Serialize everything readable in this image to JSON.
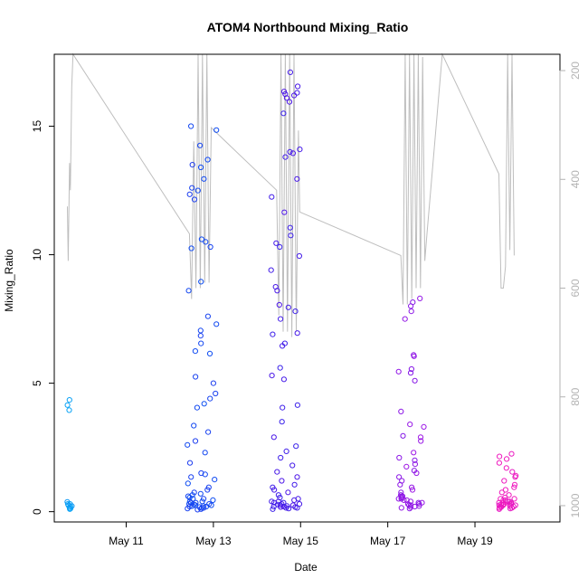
{
  "chart_data": {
    "type": "scatter",
    "title": "ATOM4 Northbound Mixing_Ratio",
    "xlabel": "Date",
    "ylabel": "Mixing_Ratio",
    "x_unit": "days (May)",
    "xlim": [
      9.35,
      20.95
    ],
    "ylim": [
      -0.4,
      17.8
    ],
    "x_ticks": [
      {
        "value": 11,
        "label": "May 11"
      },
      {
        "value": 13,
        "label": "May 13"
      },
      {
        "value": 15,
        "label": "May 15"
      },
      {
        "value": 17,
        "label": "May 17"
      },
      {
        "value": 19,
        "label": "May 19"
      }
    ],
    "y_ticks": [
      0,
      5,
      10,
      15
    ],
    "y2_ticks": [
      200,
      400,
      600,
      800,
      1000
    ],
    "y2lim": [
      1030,
      170
    ],
    "grid": false,
    "legend": "none",
    "colors": {
      "axis": "#000000",
      "secondary_axis": "#b3b3b3",
      "secondary_line": "#bebebe",
      "point_cmap": [
        "#0ba3f5",
        "#0e4df2",
        "#4a18e8",
        "#9c18e6",
        "#f01bbf"
      ]
    },
    "series": [
      {
        "kind": "points",
        "groups": [
          {
            "x_center": 9.7,
            "x_spread": 0.06,
            "color_pos": 0.0,
            "values": [
              4.35,
              4.15,
              3.95,
              0.38,
              0.3,
              0.25,
              0.2,
              0.15,
              0.12,
              0.1,
              0.3,
              0.22
            ]
          },
          {
            "x_center": 12.75,
            "x_spread": 0.35,
            "color_pos": 0.28,
            "values": [
              15.0,
              14.85,
              14.25,
              13.7,
              13.5,
              13.4,
              12.95,
              12.6,
              12.5,
              12.35,
              12.15,
              10.6,
              10.5,
              10.3,
              10.25,
              8.95,
              8.6,
              7.6,
              7.3,
              7.05,
              6.85,
              6.55,
              6.25,
              6.15,
              5.25,
              5.0,
              4.6,
              4.4,
              4.2,
              4.05,
              3.35,
              3.1,
              2.75,
              2.6,
              2.3,
              1.9,
              1.5,
              1.45,
              1.35,
              1.25,
              1.1,
              0.95,
              0.85,
              0.75,
              0.65,
              0.55,
              0.5,
              0.45,
              0.4,
              0.35,
              0.3,
              0.28,
              0.25,
              0.22,
              0.2,
              0.18,
              0.15,
              0.12,
              0.1,
              0.08,
              0.3,
              0.25,
              0.2,
              0.4,
              0.5,
              0.6,
              0.7,
              0.15,
              0.22,
              0.35
            ]
          },
          {
            "x_center": 14.65,
            "x_spread": 0.35,
            "color_pos": 0.48,
            "values": [
              17.1,
              16.55,
              16.35,
              16.3,
              16.25,
              16.2,
              16.1,
              15.95,
              15.5,
              14.1,
              14.0,
              13.95,
              13.8,
              12.95,
              12.25,
              11.65,
              11.05,
              10.75,
              10.45,
              10.3,
              9.95,
              9.4,
              8.75,
              8.6,
              8.05,
              7.95,
              7.8,
              7.5,
              6.95,
              6.9,
              6.55,
              6.45,
              5.6,
              5.3,
              5.15,
              4.15,
              4.05,
              3.5,
              2.9,
              2.55,
              2.35,
              2.1,
              1.8,
              1.55,
              1.35,
              1.2,
              1.05,
              0.95,
              0.85,
              0.75,
              0.65,
              0.55,
              0.5,
              0.45,
              0.4,
              0.35,
              0.3,
              0.25,
              0.22,
              0.2,
              0.18,
              0.15,
              0.12,
              0.1,
              0.3,
              0.25,
              0.2,
              0.35,
              0.15,
              0.28,
              0.4,
              0.18
            ]
          },
          {
            "x_center": 17.55,
            "x_spread": 0.3,
            "color_pos": 0.72,
            "values": [
              8.3,
              8.15,
              8.0,
              7.8,
              7.5,
              6.1,
              6.05,
              5.55,
              5.45,
              5.4,
              5.1,
              3.9,
              3.4,
              3.3,
              2.95,
              2.9,
              2.75,
              2.3,
              2.1,
              2.0,
              1.85,
              1.75,
              1.6,
              1.5,
              1.35,
              1.2,
              1.05,
              0.95,
              0.85,
              0.75,
              0.65,
              0.6,
              0.55,
              0.5,
              0.45,
              0.4,
              0.35,
              0.3,
              0.25,
              0.22,
              0.2,
              0.18,
              0.15,
              0.12,
              0.3,
              0.45,
              0.6,
              0.35,
              0.25,
              0.5
            ]
          },
          {
            "x_center": 19.75,
            "x_spread": 0.2,
            "color_pos": 1.0,
            "values": [
              2.25,
              2.15,
              2.05,
              1.9,
              1.7,
              1.55,
              1.4,
              1.35,
              1.2,
              1.05,
              0.95,
              0.85,
              0.75,
              0.65,
              0.55,
              0.5,
              0.45,
              0.4,
              0.35,
              0.3,
              0.28,
              0.25,
              0.22,
              0.2,
              0.18,
              0.15,
              0.12,
              0.1,
              0.3,
              0.25,
              0.35,
              0.4,
              0.45,
              0.2,
              0.15,
              0.3,
              0.25,
              0.5,
              0.35,
              0.28
            ]
          }
        ]
      },
      {
        "kind": "line",
        "axis": "y2",
        "points": [
          [
            9.65,
            450
          ],
          [
            9.67,
            550
          ],
          [
            9.7,
            370
          ],
          [
            9.72,
            420
          ],
          [
            9.75,
            230
          ],
          [
            9.78,
            165
          ],
          [
            12.45,
            500
          ],
          [
            12.5,
            620
          ],
          [
            12.55,
            330
          ],
          [
            12.6,
            600
          ],
          [
            12.65,
            165
          ],
          [
            12.7,
            600
          ],
          [
            12.75,
            165
          ],
          [
            12.8,
            590
          ],
          [
            12.85,
            165
          ],
          [
            12.9,
            590
          ],
          [
            12.95,
            305
          ],
          [
            14.45,
            420
          ],
          [
            14.5,
            650
          ],
          [
            14.55,
            165
          ],
          [
            14.6,
            680
          ],
          [
            14.65,
            165
          ],
          [
            14.7,
            680
          ],
          [
            14.75,
            165
          ],
          [
            14.8,
            690
          ],
          [
            14.85,
            170
          ],
          [
            14.9,
            680
          ],
          [
            14.95,
            310
          ],
          [
            14.98,
            460
          ],
          [
            17.3,
            540
          ],
          [
            17.35,
            630
          ],
          [
            17.4,
            165
          ],
          [
            17.45,
            630
          ],
          [
            17.5,
            165
          ],
          [
            17.55,
            620
          ],
          [
            17.6,
            165
          ],
          [
            17.65,
            600
          ],
          [
            17.7,
            165
          ],
          [
            17.75,
            600
          ],
          [
            17.8,
            175
          ],
          [
            17.85,
            550
          ],
          [
            17.9,
            500
          ],
          [
            18.25,
            165
          ],
          [
            19.55,
            390
          ],
          [
            19.6,
            600
          ],
          [
            19.65,
            600
          ],
          [
            19.7,
            560
          ],
          [
            19.75,
            165
          ],
          [
            19.8,
            530
          ],
          [
            19.85,
            165
          ],
          [
            19.9,
            540
          ]
        ]
      }
    ]
  }
}
